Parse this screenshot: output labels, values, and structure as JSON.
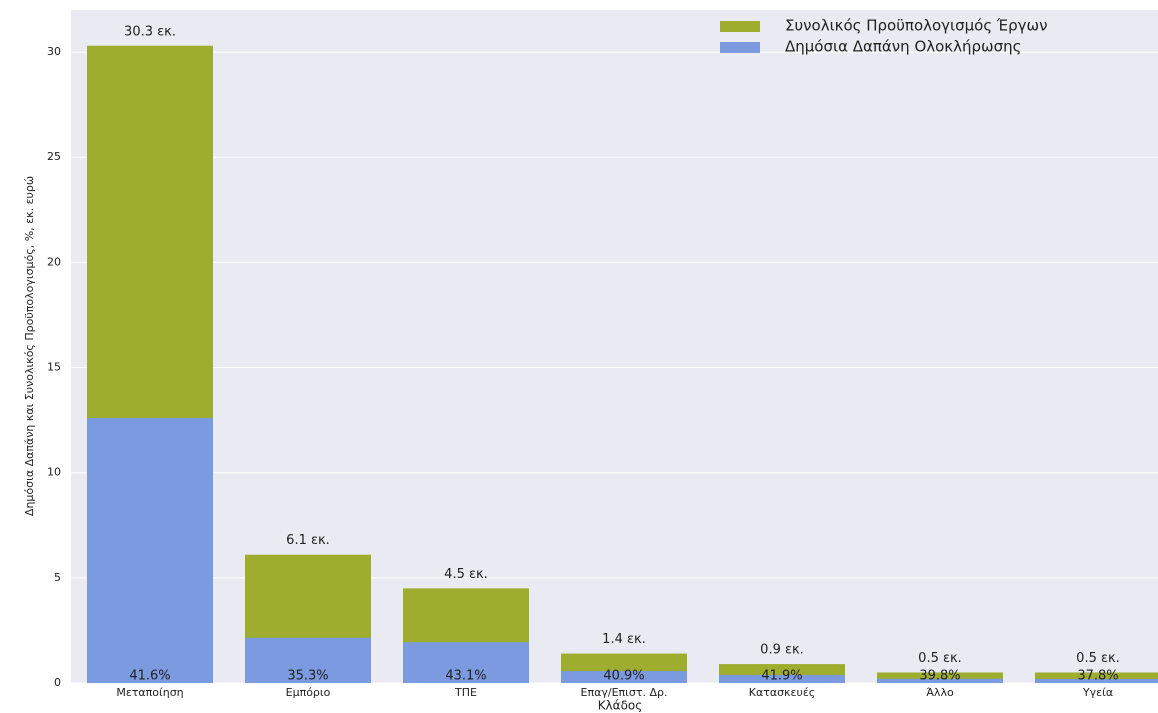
{
  "chart_data": {
    "type": "overlap_bar",
    "xlabel": "Κλάδος",
    "ylabel": "Δημόσια Δαπάνη και Συνολικός Προϋπολογισμός, %, εκ. ευρώ",
    "categories": [
      "Μεταποίηση",
      "Εμπόριο",
      "ΤΠΕ",
      "Επαγ/Επιστ. Δρ.",
      "Κατασκευές",
      "Άλλο",
      "Υγεία"
    ],
    "series": [
      {
        "name": "Συνολικός Προϋπολογισμός Έργων",
        "color": "#9fad2f",
        "values": [
          30.3,
          6.1,
          4.5,
          1.4,
          0.9,
          0.5,
          0.5
        ],
        "value_labels": [
          "30.3 εκ.",
          "6.1 εκ.",
          "4.5 εκ.",
          "1.4 εκ.",
          "0.9 εκ.",
          "0.5 εκ.",
          "0.5 εκ."
        ]
      },
      {
        "name": "Δημόσια Δαπάνη Ολοκλήρωσης",
        "color": "#7b9ae0",
        "values": [
          12.6,
          2.15,
          1.94,
          0.57,
          0.38,
          0.2,
          0.19
        ],
        "share_labels": [
          "41.6%",
          "35.3%",
          "43.1%",
          "40.9%",
          "41.9%",
          "39.8%",
          "37.8%"
        ]
      }
    ],
    "ylim": [
      0,
      32
    ],
    "yticks": [
      0,
      5,
      10,
      15,
      20,
      25,
      30
    ],
    "grid": true,
    "legend": "upper right"
  }
}
